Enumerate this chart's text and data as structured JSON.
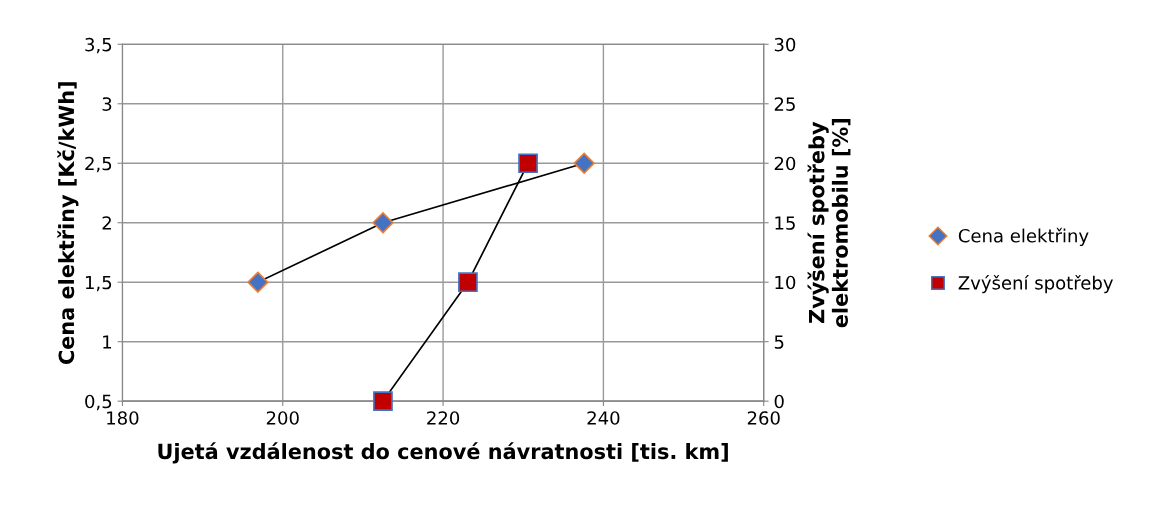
{
  "chart_data": {
    "type": "line",
    "xlabel": "Ujetá vzdálenost do cenové návratnosti [tis. km]",
    "ylabel": "Cena elektřiny [Kč/kWh]",
    "y2label": "Zvýšení spotřeby\nelektromobilu [%]",
    "xlim": [
      180,
      260
    ],
    "xticks": [
      180,
      200,
      220,
      240,
      260
    ],
    "ylim": [
      0.5,
      3.5
    ],
    "yticks": [
      {
        "value": 0.5,
        "label": "0,5"
      },
      1,
      {
        "value": 1.5,
        "label": "1,5"
      },
      2,
      {
        "value": 2.5,
        "label": "2,5"
      },
      3,
      {
        "value": 3.5,
        "label": "3,5"
      }
    ],
    "y2lim": [
      0,
      30
    ],
    "y2ticks": [
      0,
      5,
      10,
      15,
      20,
      25,
      30
    ],
    "grid": true,
    "legend": "right",
    "series": [
      {
        "name": "Cena elektřiny",
        "color": "#4472c4",
        "marker": "diamond",
        "x": [
          196.9,
          212.5,
          237.6
        ],
        "values": [
          1.5,
          2,
          2.5
        ]
      },
      {
        "name": "Zvýšení spotřeby",
        "color": "#c00000",
        "marker": "square",
        "axis": "y2",
        "x": [
          212.5,
          223.1,
          230.6
        ],
        "values": [
          0,
          10,
          20
        ]
      }
    ]
  }
}
